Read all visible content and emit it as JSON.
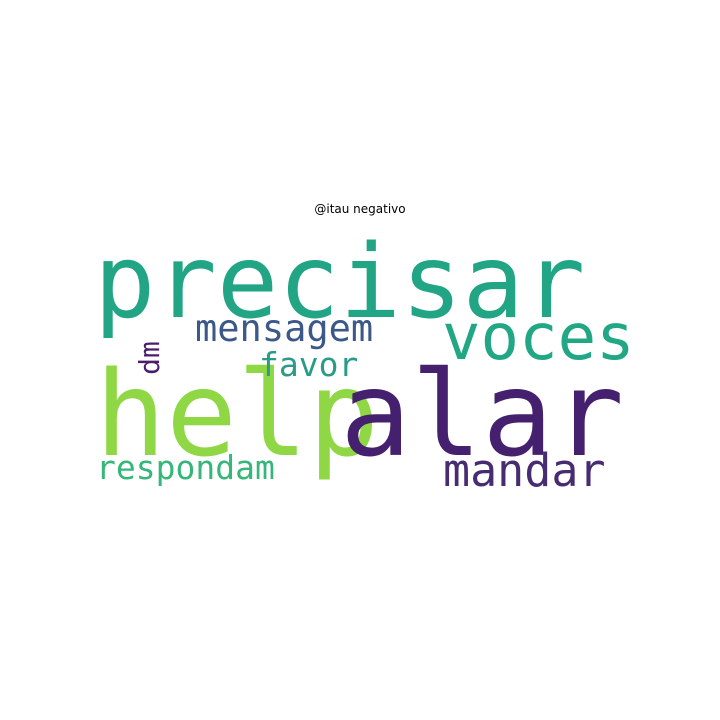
{
  "title": "@itau negativo",
  "words": [
    {
      "id": "precisar",
      "text": "precisar",
      "color": "#21a585"
    },
    {
      "id": "help",
      "text": "help",
      "color": "#8fd744"
    },
    {
      "id": "alar",
      "text": "alar",
      "color": "#45206f"
    },
    {
      "id": "voces",
      "text": "voces",
      "color": "#22a785"
    },
    {
      "id": "mensagem",
      "text": "mensagem",
      "color": "#3b5889"
    },
    {
      "id": "mandar",
      "text": "mandar",
      "color": "#472c72"
    },
    {
      "id": "respondam",
      "text": "respondam",
      "color": "#35b779"
    },
    {
      "id": "favor",
      "text": "favor",
      "color": "#2a9b89"
    },
    {
      "id": "dm",
      "text": "dm",
      "color": "#4b1e6b"
    }
  ]
}
